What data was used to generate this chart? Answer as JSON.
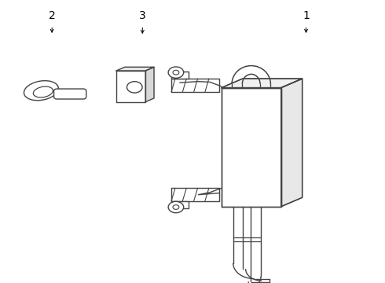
{
  "background_color": "#ffffff",
  "line_color": "#444444",
  "line_width": 1.0,
  "label_color": "#000000",
  "label_fontsize": 10,
  "arrow_color": "#000000",
  "labels": {
    "1": [
      0.795,
      0.925
    ],
    "2": [
      0.135,
      0.925
    ],
    "3": [
      0.37,
      0.925
    ]
  },
  "arrow_starts": {
    "1": [
      0.795,
      0.91
    ],
    "2": [
      0.135,
      0.91
    ],
    "3": [
      0.37,
      0.91
    ]
  },
  "arrow_ends": {
    "1": [
      0.795,
      0.875
    ],
    "2": [
      0.135,
      0.875
    ],
    "3": [
      0.37,
      0.872
    ]
  }
}
